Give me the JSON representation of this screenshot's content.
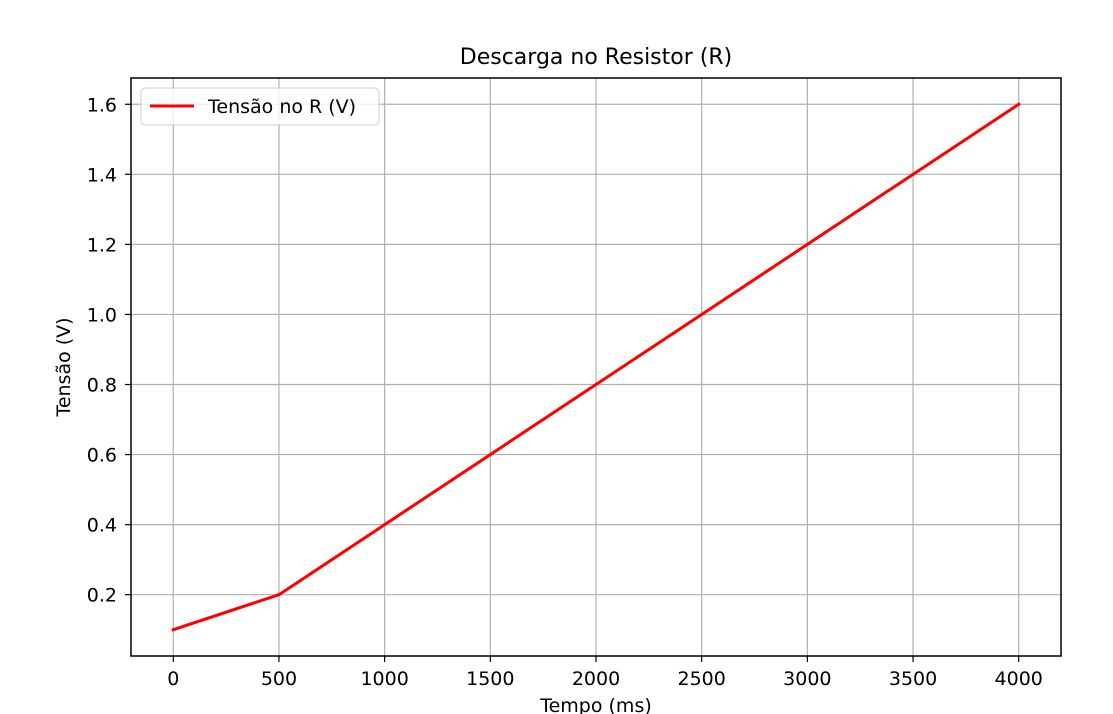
{
  "chart_data": {
    "type": "line",
    "title": "Descarga no Resistor (R)",
    "xlabel": "Tempo (ms)",
    "ylabel": "Tensão (V)",
    "xlim": [
      -200,
      4200
    ],
    "ylim": [
      0.025,
      1.675
    ],
    "x_ticks": [
      0,
      500,
      1000,
      1500,
      2000,
      2500,
      3000,
      3500,
      4000
    ],
    "x_tick_labels": [
      "0",
      "500",
      "1000",
      "1500",
      "2000",
      "2500",
      "3000",
      "3500",
      "4000"
    ],
    "y_ticks": [
      0.2,
      0.4,
      0.6,
      0.8,
      1.0,
      1.2,
      1.4,
      1.6
    ],
    "y_tick_labels": [
      "0.2",
      "0.4",
      "0.6",
      "0.8",
      "1.0",
      "1.2",
      "1.4",
      "1.6"
    ],
    "grid": true,
    "legend_position": "upper-left",
    "series": [
      {
        "name": "Tensão no R (V)",
        "color": "#ff0000",
        "x": [
          0,
          500,
          1000,
          1500,
          2000,
          2500,
          3000,
          3500,
          4000
        ],
        "y": [
          0.1,
          0.2,
          0.4,
          0.6,
          0.8,
          1.0,
          1.2,
          1.4,
          1.6
        ]
      }
    ]
  }
}
